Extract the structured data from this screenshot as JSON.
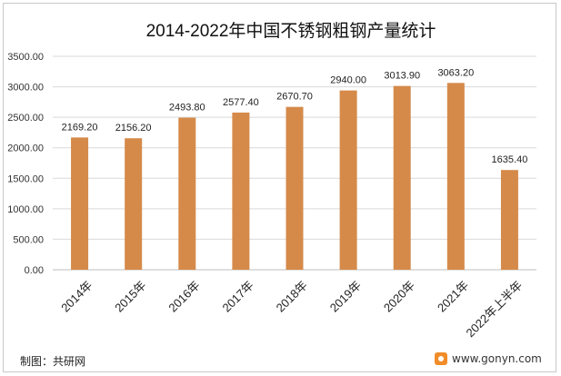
{
  "chart_data": {
    "type": "bar",
    "title": "2014-2022年中国不锈钢粗钢产量统计",
    "categories": [
      "2014年",
      "2015年",
      "2016年",
      "2017年",
      "2018年",
      "2019年",
      "2020年",
      "2021年",
      "2022年上半年"
    ],
    "values": [
      2169.2,
      2156.2,
      2493.8,
      2577.4,
      2670.7,
      2940.0,
      3013.9,
      3063.2,
      1635.4
    ],
    "value_labels": [
      "2169.20",
      "2156.20",
      "2493.80",
      "2577.40",
      "2670.70",
      "2940.00",
      "3013.90",
      "3063.20",
      "1635.40"
    ],
    "ylim": [
      0,
      3500
    ],
    "yticks": [
      "0.00",
      "500.00",
      "1000.00",
      "1500.00",
      "2000.00",
      "2500.00",
      "3000.00",
      "3500.00"
    ],
    "xlabel": "",
    "ylabel": "",
    "grid": true,
    "bar_color": "#d58a4a"
  },
  "footer": {
    "source": "制图：共研网",
    "website": "www.gonyn.com"
  }
}
